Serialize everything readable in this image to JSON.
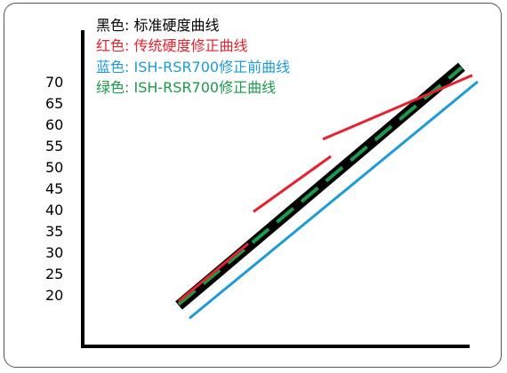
{
  "chart_data": {
    "type": "line",
    "title": "",
    "xlabel": "",
    "ylabel": "",
    "ylim": [
      20,
      70
    ],
    "y_ticks": [
      "70",
      "65",
      "60",
      "55",
      "50",
      "45",
      "40",
      "35",
      "30",
      "25",
      "20"
    ],
    "grid": false,
    "legend_position": "top-left",
    "legend": [
      {
        "key": "黑色:",
        "label": "标准硬度曲线",
        "key_color": "#000000",
        "label_color": "#000000"
      },
      {
        "key": "红色:",
        "label": "传统硬度修正曲线",
        "key_color": "#e8212e",
        "label_color": "#e8212e"
      },
      {
        "key": "蓝色:",
        "label": "ISH-RSR700修正前曲线",
        "key_color": "#1c9bd6",
        "label_color": "#1c9bd6"
      },
      {
        "key": "绿色:",
        "label": "ISH-RSR700修正曲线",
        "key_color": "#1a9a4a",
        "label_color": "#1a9a4a"
      }
    ],
    "series": [
      {
        "color": "#000000",
        "style": "thick-solid",
        "points": [
          [
            18,
            17.5
          ],
          [
            71,
            73.5
          ]
        ]
      },
      {
        "color": "#1a9a4a",
        "style": "dashed-segments",
        "points": [
          [
            18,
            17.8
          ],
          [
            71,
            73.3
          ]
        ]
      },
      {
        "color": "#1c9bd6",
        "style": "solid",
        "points": [
          [
            20,
            14.5
          ],
          [
            74,
            70
          ]
        ]
      },
      {
        "color": "#e8212e",
        "style": "segment",
        "points": [
          [
            18,
            18.5
          ],
          [
            31,
            32
          ]
        ]
      },
      {
        "color": "#e8212e",
        "style": "segment",
        "points": [
          [
            32,
            39.5
          ],
          [
            46.5,
            52.5
          ]
        ]
      },
      {
        "color": "#e8212e",
        "style": "segment",
        "points": [
          [
            45,
            56.5
          ],
          [
            73,
            71.5
          ]
        ]
      }
    ]
  }
}
